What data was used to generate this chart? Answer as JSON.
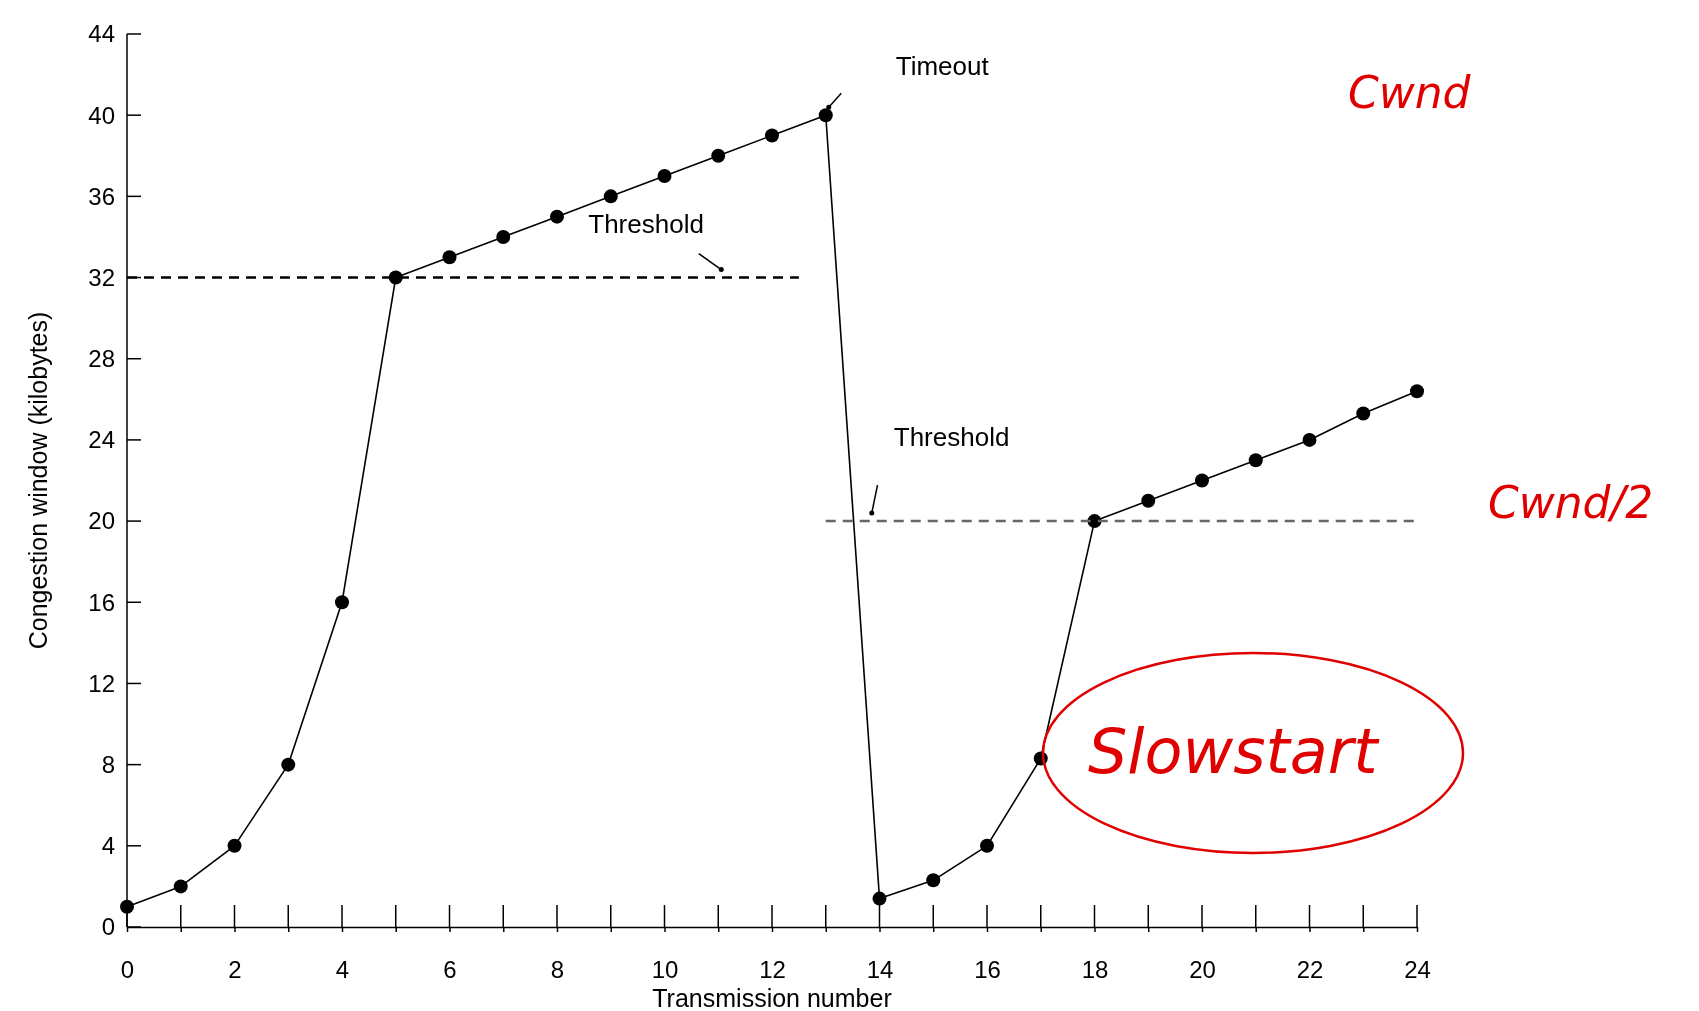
{
  "chart_data": {
    "type": "line",
    "xlabel": "Transmission number",
    "ylabel": "Congestion window (kilobytes)",
    "xlim": [
      0,
      24
    ],
    "ylim": [
      0,
      44
    ],
    "xticks": [
      0,
      {
        "value": 1,
        "label": null
      },
      2,
      {
        "value": 3,
        "label": null
      },
      4,
      {
        "value": 5,
        "label": null
      },
      6,
      {
        "value": 7,
        "label": null
      },
      8,
      {
        "value": 9,
        "label": null
      },
      10,
      {
        "value": 11,
        "label": null
      },
      12,
      {
        "value": 13,
        "label": null
      },
      14,
      {
        "value": 15,
        "label": null
      },
      16,
      {
        "value": 17,
        "label": null
      },
      18,
      {
        "value": 19,
        "label": null
      },
      20,
      {
        "value": 21,
        "label": null
      },
      22,
      {
        "value": 23,
        "label": null
      },
      24
    ],
    "yticks": [
      0,
      4,
      8,
      12,
      16,
      20,
      24,
      28,
      32,
      36,
      40,
      44
    ],
    "grid": false,
    "series": [
      {
        "color": "#000000",
        "marker": "circle",
        "line_style": "solid",
        "x": [
          0,
          1,
          2,
          3,
          4,
          5,
          6,
          7,
          8,
          9,
          10,
          11,
          12,
          13,
          14,
          15,
          16,
          17,
          18,
          19,
          20,
          21,
          22,
          23,
          24
        ],
        "values": [
          1,
          2,
          4,
          8,
          16,
          32,
          33,
          34,
          35,
          36,
          37,
          38,
          39,
          40,
          1.4,
          2.3,
          4,
          8.3,
          20,
          21,
          22,
          23,
          24,
          25.3,
          26.4
        ]
      },
      {
        "color": "#000000",
        "marker": "none",
        "line_style": "dashed",
        "x": [
          0,
          12.5
        ],
        "values": [
          32,
          32
        ]
      },
      {
        "color": "#666666",
        "marker": "none",
        "line_style": "dashed",
        "x": [
          13,
          24
        ],
        "values": [
          20,
          20
        ]
      }
    ],
    "annotations": [
      {
        "text": "Timeout",
        "x": 13,
        "y": 40
      },
      {
        "text": "Threshold",
        "x": 11,
        "y": 32
      },
      {
        "text": "Threshold",
        "x": 13.8,
        "y": 20
      },
      "Cwnd",
      "Cwnd/2",
      "Slowstart"
    ]
  }
}
